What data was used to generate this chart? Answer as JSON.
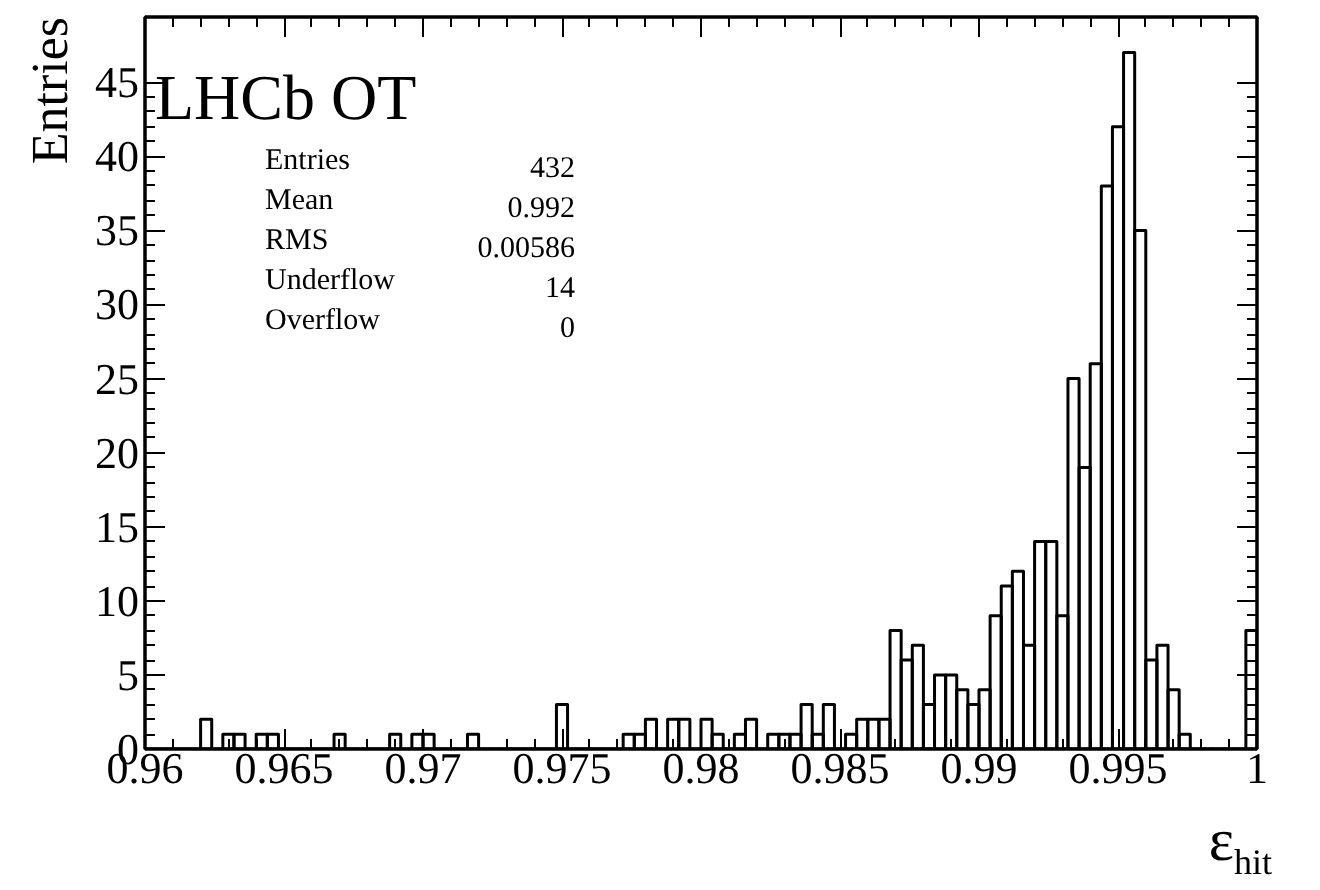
{
  "chart_data": {
    "type": "histogram",
    "title": "LHCb OT",
    "xlabel": "ε$_{hit}$",
    "ylabel": "Entries",
    "annotations": [
      "Entries",
      "432",
      "Mean",
      "0.992",
      "RMS",
      "0.00586",
      "Underflow",
      "14",
      "Overflow",
      "0"
    ],
    "bins": [
      0.96,
      0.9604,
      0.9608,
      0.9612,
      0.9616,
      0.962,
      0.9624,
      0.9628,
      0.9632,
      0.9636,
      0.964,
      0.9644,
      0.9648,
      0.9652,
      0.9656,
      0.966,
      0.9664,
      0.9668,
      0.9672,
      0.9676,
      0.968,
      0.9684,
      0.9688,
      0.9692,
      0.9696,
      0.97,
      0.9704,
      0.9708,
      0.9712,
      0.9716,
      0.972,
      0.9724,
      0.9728,
      0.9732,
      0.9736,
      0.974,
      0.9744,
      0.9748,
      0.9752,
      0.9756,
      0.976,
      0.9764,
      0.9768,
      0.9772,
      0.9776,
      0.978,
      0.9784,
      0.9788,
      0.9792,
      0.9796,
      0.98,
      0.9804,
      0.9808,
      0.9812,
      0.9816,
      0.982,
      0.9824,
      0.9828,
      0.9832,
      0.9836,
      0.984,
      0.9844,
      0.9848,
      0.9852,
      0.9856,
      0.986,
      0.9864,
      0.9868,
      0.9872,
      0.9876,
      0.988,
      0.9884,
      0.9888,
      0.9892,
      0.9896,
      0.99,
      0.9904,
      0.9908,
      0.9912,
      0.9916,
      0.992,
      0.9924,
      0.9928,
      0.9932,
      0.9936,
      0.994,
      0.9944,
      0.9948,
      0.9952,
      0.9956,
      0.996,
      0.9964,
      0.9968,
      0.9972,
      0.9976,
      0.998,
      0.9984,
      0.9988,
      0.9992,
      0.9996,
      1.0
    ],
    "values": [
      0,
      0,
      0,
      0,
      0,
      2,
      0,
      1,
      1,
      0,
      1,
      1,
      0,
      0,
      0,
      0,
      0,
      1,
      0,
      0,
      0,
      0,
      1,
      0,
      1,
      1,
      0,
      0,
      0,
      1,
      0,
      0,
      0,
      0,
      0,
      0,
      0,
      3,
      0,
      0,
      0,
      0,
      0,
      1,
      1,
      2,
      0,
      2,
      2,
      0,
      2,
      1,
      0,
      1,
      2,
      0,
      1,
      1,
      1,
      3,
      1,
      3,
      0,
      1,
      2,
      2,
      2,
      8,
      6,
      7,
      3,
      5,
      5,
      4,
      3,
      4,
      9,
      11,
      12,
      7,
      14,
      14,
      9,
      25,
      19,
      26,
      38,
      42,
      47,
      35,
      6,
      7,
      4,
      1,
      0,
      0,
      0,
      0,
      0,
      8
    ],
    "color": "#000000",
    "xlim": [
      0.96,
      1.0
    ],
    "ylim": [
      0,
      49.4
    ],
    "xticks": [
      0.96,
      0.965,
      0.97,
      0.975,
      0.98,
      0.985,
      0.99,
      0.995,
      {
        "value": 1.0,
        "label": "1"
      }
    ],
    "yticks": [
      0,
      5,
      10,
      15,
      20,
      25,
      30,
      35,
      40,
      45
    ],
    "grid": false
  }
}
